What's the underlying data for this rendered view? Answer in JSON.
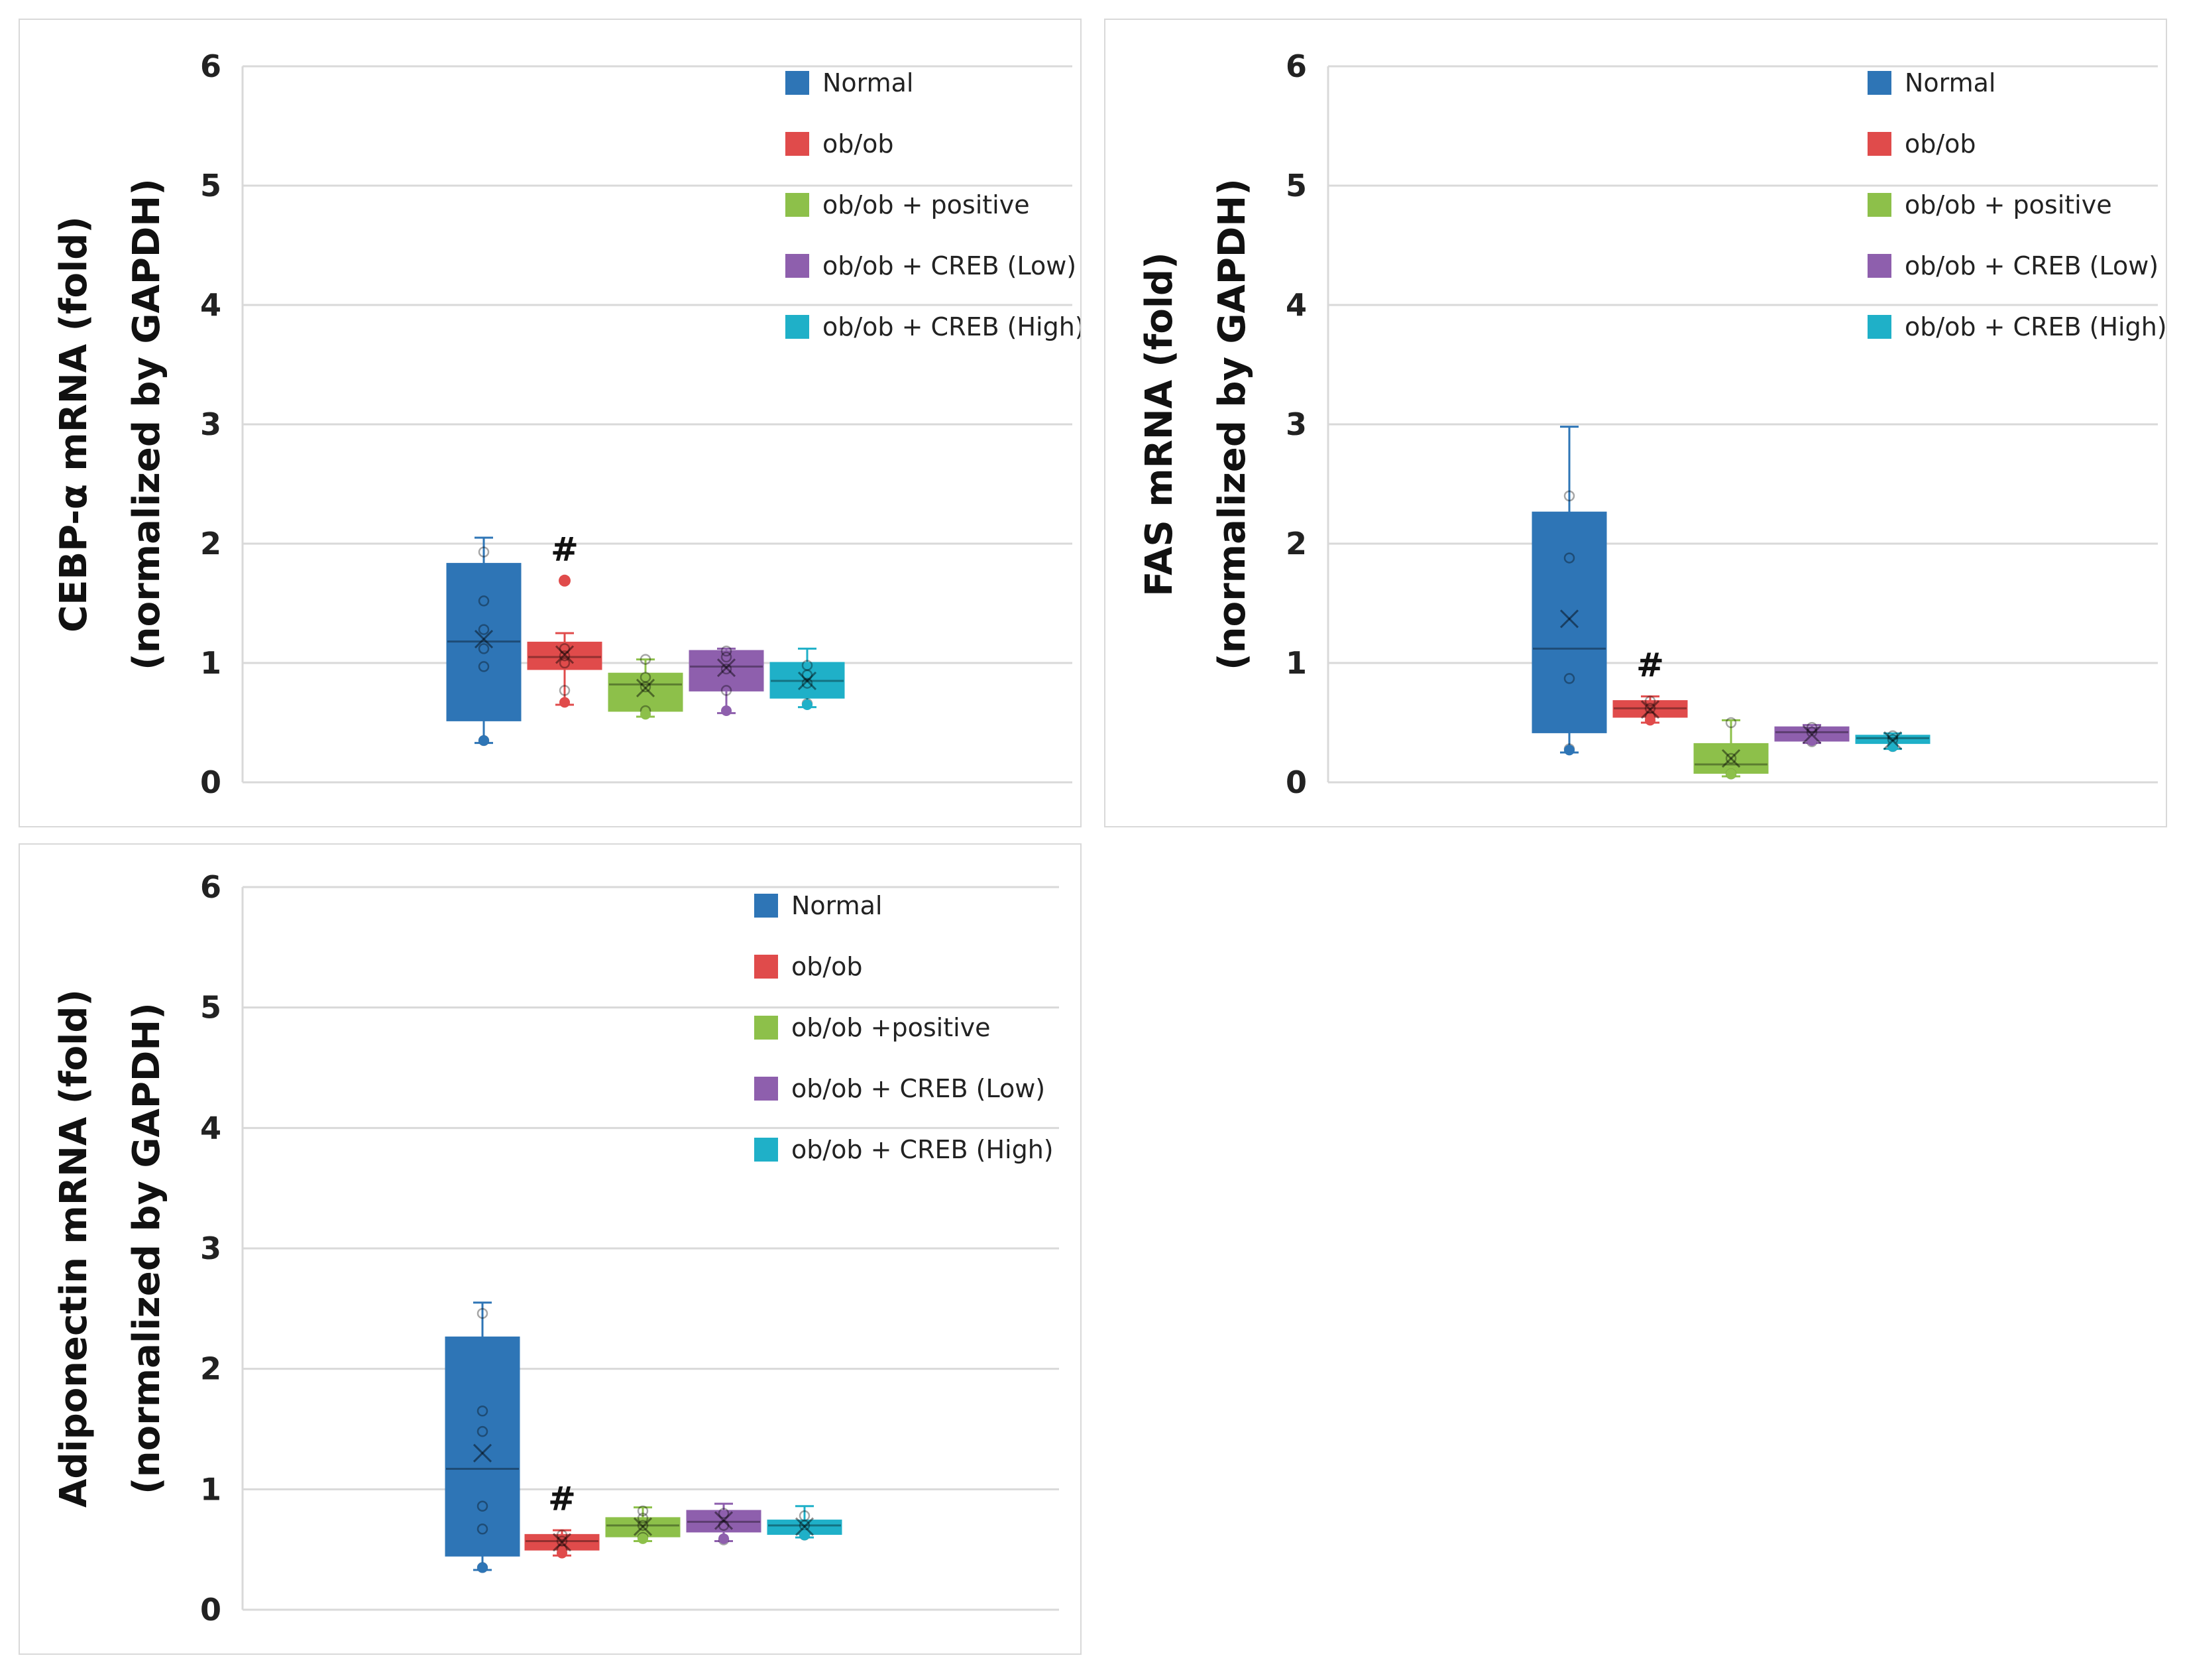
{
  "chart_data": [
    {
      "type": "box",
      "ylabel_line1": "CEBP-α mRNA (fold)",
      "ylabel_line2": "(normalized by GAPDH)",
      "ylim": [
        0,
        6
      ],
      "yticks": [
        "0",
        "1",
        "2",
        "3",
        "4",
        "5",
        "6"
      ],
      "legend": [
        "Normal",
        "ob/ob",
        "ob/ob + positive",
        "ob/ob + CREB (Low)",
        "ob/ob + CREB (High)"
      ],
      "annotation": "#",
      "annotation_group": 1,
      "series": [
        {
          "name": "Normal",
          "color": "#2e75b6",
          "whisker_low": 0.33,
          "q1": 0.52,
          "median": 1.18,
          "q3": 1.83,
          "whisker_high": 2.05,
          "mean": 1.2,
          "points": [
            0.35,
            0.97,
            1.12,
            1.28,
            1.52,
            1.93
          ],
          "outliers": []
        },
        {
          "name": "ob/ob",
          "color": "#e04b4b",
          "whisker_low": 0.65,
          "q1": 0.95,
          "median": 1.05,
          "q3": 1.17,
          "whisker_high": 1.25,
          "mean": 1.07,
          "points": [
            0.77,
            1.0,
            1.06,
            1.12
          ],
          "outliers": [
            1.69
          ]
        },
        {
          "name": "ob/ob + positive",
          "color": "#8dc04a",
          "whisker_low": 0.55,
          "q1": 0.6,
          "median": 0.82,
          "q3": 0.91,
          "whisker_high": 1.03,
          "mean": 0.79,
          "points": [
            0.6,
            0.8,
            0.88,
            1.03
          ],
          "outliers": []
        },
        {
          "name": "ob/ob + CREB (Low)",
          "color": "#8e5fad",
          "whisker_low": 0.58,
          "q1": 0.77,
          "median": 0.97,
          "q3": 1.1,
          "whisker_high": 1.12,
          "mean": 0.96,
          "points": [
            0.77,
            0.95,
            1.05,
            1.1
          ],
          "outliers": []
        },
        {
          "name": "ob/ob + CREB (High)",
          "color": "#1fb0c8",
          "whisker_low": 0.63,
          "q1": 0.71,
          "median": 0.85,
          "q3": 1.0,
          "whisker_high": 1.12,
          "mean": 0.85,
          "points": [
            0.66,
            0.83,
            0.9,
            0.98
          ],
          "outliers": []
        }
      ]
    },
    {
      "type": "box",
      "ylabel_line1": "FAS mRNA (fold)",
      "ylabel_line2": "(normalized by GAPDH)",
      "ylim": [
        0,
        6
      ],
      "yticks": [
        "0",
        "1",
        "2",
        "3",
        "4",
        "5",
        "6"
      ],
      "legend": [
        "Normal",
        "ob/ob",
        "ob/ob + positive",
        "ob/ob + CREB (Low)",
        "ob/ob + CREB (High)"
      ],
      "annotation": "#",
      "annotation_group": 1,
      "series": [
        {
          "name": "Normal",
          "color": "#2e75b6",
          "whisker_low": 0.25,
          "q1": 0.42,
          "median": 1.12,
          "q3": 2.26,
          "whisker_high": 2.98,
          "mean": 1.37,
          "points": [
            0.28,
            0.87,
            1.88,
            2.4
          ],
          "outliers": []
        },
        {
          "name": "ob/ob",
          "color": "#e04b4b",
          "whisker_low": 0.5,
          "q1": 0.55,
          "median": 0.62,
          "q3": 0.68,
          "whisker_high": 0.72,
          "mean": 0.61,
          "points": [
            0.55,
            0.62,
            0.68
          ],
          "outliers": []
        },
        {
          "name": "ob/ob + positive",
          "color": "#8dc04a",
          "whisker_low": 0.05,
          "q1": 0.08,
          "median": 0.15,
          "q3": 0.32,
          "whisker_high": 0.52,
          "mean": 0.2,
          "points": [
            0.07,
            0.2,
            0.5
          ],
          "outliers": []
        },
        {
          "name": "ob/ob + CREB (Low)",
          "color": "#8e5fad",
          "whisker_low": 0.33,
          "q1": 0.35,
          "median": 0.42,
          "q3": 0.46,
          "whisker_high": 0.48,
          "mean": 0.4,
          "points": [
            0.34,
            0.42,
            0.46
          ],
          "outliers": []
        },
        {
          "name": "ob/ob + CREB (High)",
          "color": "#1fb0c8",
          "whisker_low": 0.28,
          "q1": 0.33,
          "median": 0.37,
          "q3": 0.39,
          "whisker_high": 0.41,
          "mean": 0.35,
          "points": [
            0.3,
            0.36,
            0.39
          ],
          "outliers": []
        }
      ]
    },
    {
      "type": "box",
      "ylabel_line1": "Adiponectin mRNA (fold)",
      "ylabel_line2": "(normalized by GAPDH)",
      "ylim": [
        0,
        6
      ],
      "yticks": [
        "0",
        "1",
        "2",
        "3",
        "4",
        "5",
        "6"
      ],
      "legend": [
        "Normal",
        "ob/ob",
        "ob/ob +positive",
        "ob/ob + CREB (Low)",
        "ob/ob + CREB (High)"
      ],
      "annotation": "#",
      "annotation_group": 1,
      "series": [
        {
          "name": "Normal",
          "color": "#2e75b6",
          "whisker_low": 0.33,
          "q1": 0.45,
          "median": 1.17,
          "q3": 2.26,
          "whisker_high": 2.55,
          "mean": 1.3,
          "points": [
            0.35,
            0.67,
            0.86,
            1.48,
            1.65,
            2.46
          ],
          "outliers": []
        },
        {
          "name": "ob/ob",
          "color": "#e04b4b",
          "whisker_low": 0.45,
          "q1": 0.5,
          "median": 0.57,
          "q3": 0.62,
          "whisker_high": 0.66,
          "mean": 0.56,
          "points": [
            0.5,
            0.57,
            0.62
          ],
          "outliers": []
        },
        {
          "name": "ob/ob + positive",
          "color": "#8dc04a",
          "whisker_low": 0.57,
          "q1": 0.61,
          "median": 0.7,
          "q3": 0.76,
          "whisker_high": 0.85,
          "mean": 0.69,
          "points": [
            0.6,
            0.7,
            0.76,
            0.82
          ],
          "outliers": []
        },
        {
          "name": "ob/ob + CREB (Low)",
          "color": "#8e5fad",
          "whisker_low": 0.57,
          "q1": 0.65,
          "median": 0.73,
          "q3": 0.82,
          "whisker_high": 0.88,
          "mean": 0.74,
          "points": [
            0.58,
            0.7,
            0.8
          ],
          "outliers": []
        },
        {
          "name": "ob/ob + CREB (High)",
          "color": "#1fb0c8",
          "whisker_low": 0.6,
          "q1": 0.63,
          "median": 0.7,
          "q3": 0.74,
          "whisker_high": 0.86,
          "mean": 0.69,
          "points": [
            0.62,
            0.7,
            0.78
          ],
          "outliers": []
        }
      ]
    }
  ]
}
